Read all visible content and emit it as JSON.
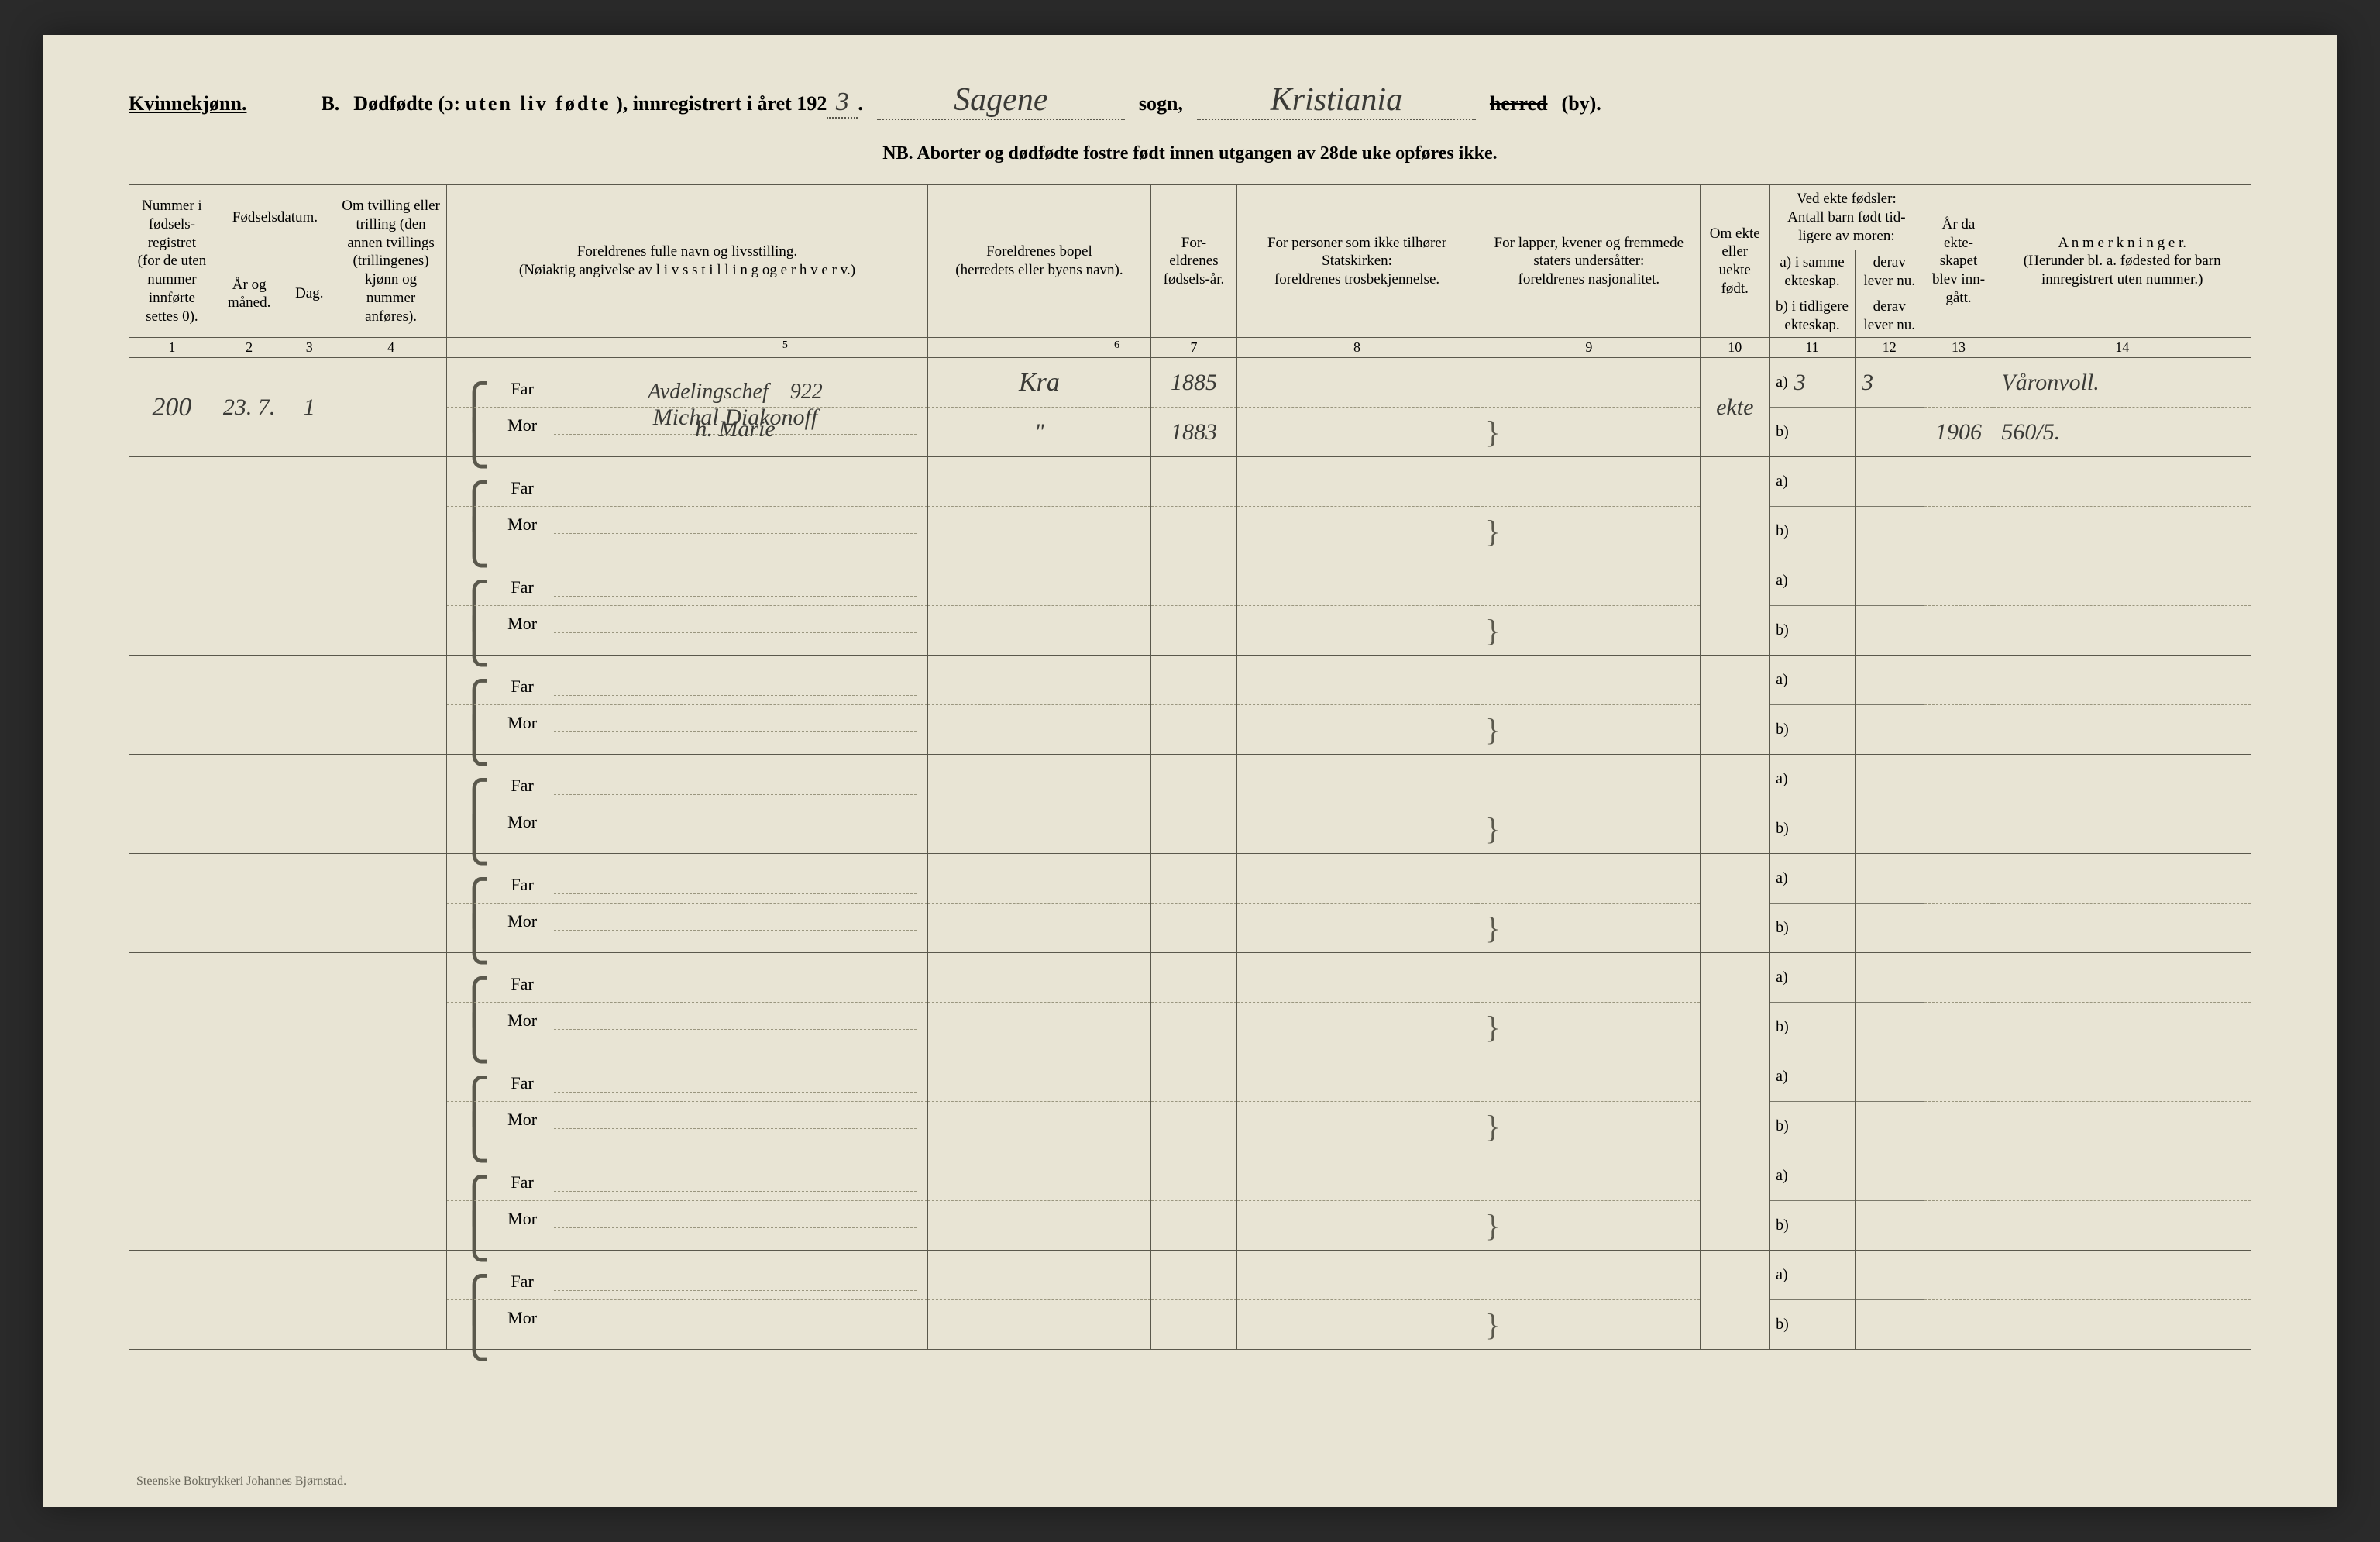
{
  "colors": {
    "page_bg": "#e8e4d4",
    "ink": "#3a3a36",
    "rule": "#5a584c",
    "dash": "#9a967f",
    "outer_bg": "#2a2a2a"
  },
  "fonts": {
    "body_pt": 20,
    "header_pt": 26,
    "hand_pt": 42,
    "table_hand_pt": 30,
    "subnote_pt": 24,
    "colhead_pt": 19,
    "printer_pt": 16
  },
  "header": {
    "gender": "Kvinnekjønn.",
    "section": "B.",
    "title_main": "Dødfødte (ɔ:",
    "title_spaced": "uten liv fødte",
    "title_after": "), innregistrert i året 192",
    "year_suffix": "3",
    "period": ".",
    "sogn_value": "Sagene",
    "sogn_label": "sogn,",
    "herred_value": "Kristiania",
    "herred_strike": "herred",
    "by_label": "(by).",
    "nb_line": "NB.  Aborter og dødfødte fostre født innen utgangen av 28de uke opføres ikke."
  },
  "columns": {
    "c1": "Nummer i fødsels-registret (for de uten nummer innførte settes 0).",
    "c2_top": "Fødselsdatum.",
    "c2a": "År og måned.",
    "c2b": "Dag.",
    "c4": "Om tvilling eller trilling (den annen tvillings (trillingenes) kjønn og nummer anføres).",
    "c5": "Foreldrenes fulle navn og livsstilling.\n(Nøiaktig angivelse av l i v s s t i l l i n g og e r h v e r v.)",
    "c6": "Foreldrenes bopel\n(herredets eller byens navn).",
    "c7": "For-eldrenes fødsels-år.",
    "c8": "For personer som ikke tilhører Statskirken:\nforeldrenes trosbekjennelse.",
    "c9": "For lapper, kvener og fremmede staters undersåtter:\nforeldrenes nasjonalitet.",
    "c10": "Om ekte eller uekte født.",
    "c11_top": "Ved ekte fødsler:\nAntall barn født tid-ligere av moren:",
    "c11a": "a) i samme ekteskap.",
    "c11b": "b) i tidligere ekteskap.",
    "c12a": "derav lever nu.",
    "c12b": "derav lever nu.",
    "c13": "År da ekte-skapet blev inn-gått.",
    "c14": "A n m e r k n i n g e r.\n(Herunder bl. a. fødested for barn innregistrert uten nummer.)"
  },
  "colnums": [
    "1",
    "2",
    "3",
    "4",
    "",
    "",
    "7",
    "8",
    "9",
    "10",
    "11",
    "12",
    "13",
    "14"
  ],
  "colnum5": "5",
  "colnum6": "6",
  "roles": {
    "far": "Far",
    "mor": "Mor"
  },
  "ab": {
    "a": "a)",
    "b": "b)"
  },
  "entries": [
    {
      "num": "200",
      "yr_mo": "23. 7.",
      "day": "1",
      "twin": "",
      "far_occ": "Avdelingschef",
      "far_occ_num": "922",
      "far_name": "Michal Diakonoff",
      "mor_name": "h. Marie",
      "bopel_far": "Kra",
      "bopel_mor": "\"",
      "byear_far": "1885",
      "byear_mor": "1883",
      "rel_far": "",
      "rel_mor": "",
      "nat_far": "",
      "nat_mor": "",
      "ekte": "ekte",
      "a_same": "3",
      "a_live": "3",
      "b_prev": "",
      "b_live": "",
      "year13": "1906",
      "remark1": "Våronvoll.",
      "remark2": "560/5."
    },
    {},
    {},
    {},
    {},
    {},
    {},
    {},
    {},
    {}
  ],
  "printer": "Steenske Boktrykkeri Johannes Bjørnstad."
}
